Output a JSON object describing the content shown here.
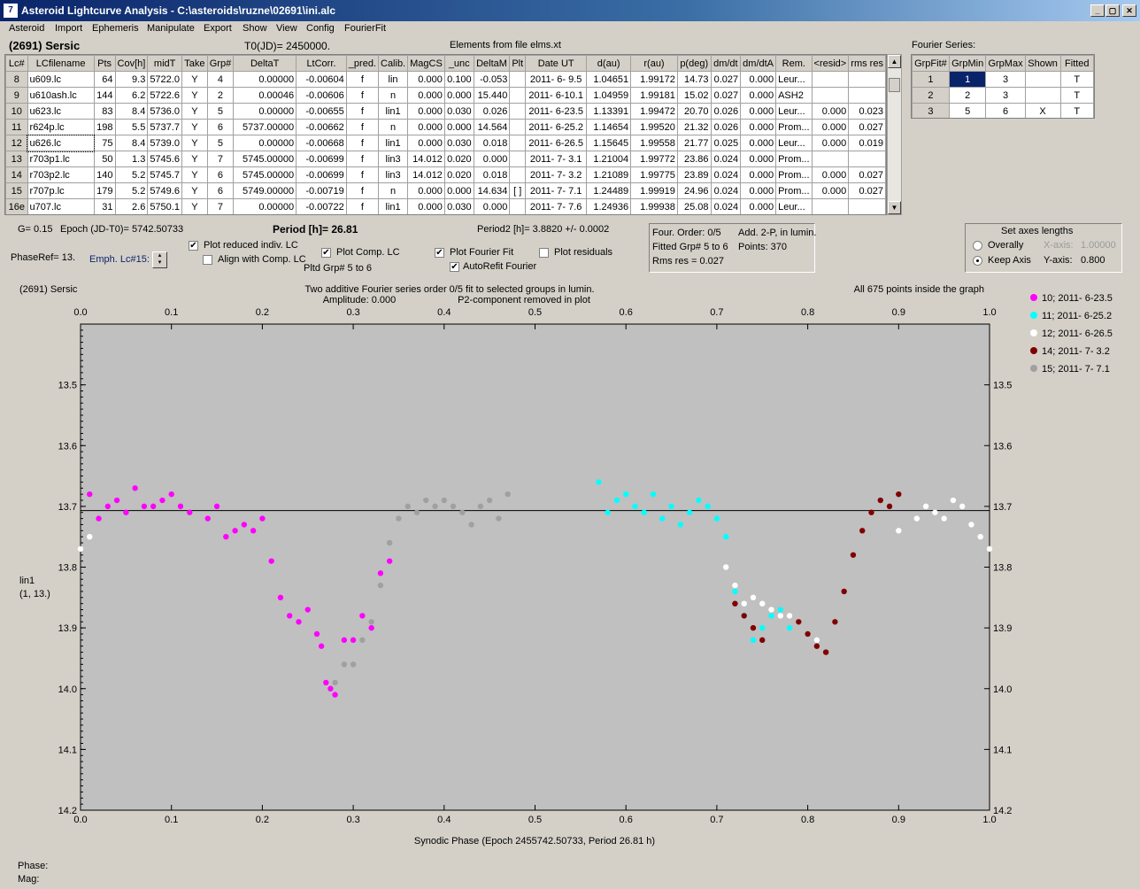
{
  "window": {
    "title": "Asteroid Lightcurve Analysis - C:\\asteroids\\ruzne\\02691\\ini.alc",
    "min": "_",
    "max": "▢",
    "close": "✕"
  },
  "menu": [
    "Asteroid",
    "Import",
    "Ephemeris",
    "Manipulate",
    "Export",
    "Show",
    "View",
    "Config",
    "FourierFit"
  ],
  "header": {
    "asteroid": "(2691) Sersic",
    "t0": "T0(JD)= 2450000.",
    "elements": "Elements from file elms.xt"
  },
  "lc_table": {
    "columns": [
      "Lc#",
      "LCfilename",
      "Pts",
      "Cov[h]",
      "midT",
      "Take",
      "Grp#",
      "DeltaT",
      "LtCorr.",
      "_pred.",
      "Calib.",
      "MagCS",
      "_unc",
      "DeltaM",
      "Plt",
      "Date UT",
      "d(au)",
      "r(au)",
      "p(deg)",
      "dm/dt",
      "dm/dtA",
      "Rem.",
      "<resid>",
      "rms res"
    ],
    "rows": [
      [
        "8",
        "u609.lc",
        "64",
        "9.3",
        "5722.0",
        "Y",
        "4",
        "0.00000",
        "-0.00604",
        "f",
        "lin",
        "0.000",
        "0.100",
        "-0.053",
        "",
        "2011- 6- 9.5",
        "1.04651",
        "1.99172",
        "14.73",
        "0.027",
        "0.000",
        "Leur...",
        "",
        ""
      ],
      [
        "9",
        "u610ash.lc",
        "144",
        "6.2",
        "5722.6",
        "Y",
        "2",
        "0.00046",
        "-0.00606",
        "f",
        "n",
        "0.000",
        "0.000",
        "15.440",
        "",
        "2011- 6-10.1",
        "1.04959",
        "1.99181",
        "15.02",
        "0.027",
        "0.000",
        "ASH2",
        "",
        ""
      ],
      [
        "10",
        "u623.lc",
        "83",
        "8.4",
        "5736.0",
        "Y",
        "5",
        "0.00000",
        "-0.00655",
        "f",
        "lin1",
        "0.000",
        "0.030",
        "0.026",
        "",
        "2011- 6-23.5",
        "1.13391",
        "1.99472",
        "20.70",
        "0.026",
        "0.000",
        "Leur...",
        "0.000",
        "0.023"
      ],
      [
        "11",
        "r624p.lc",
        "198",
        "5.5",
        "5737.7",
        "Y",
        "6",
        "5737.00000",
        "-0.00662",
        "f",
        "n",
        "0.000",
        "0.000",
        "14.564",
        "",
        "2011- 6-25.2",
        "1.14654",
        "1.99520",
        "21.32",
        "0.026",
        "0.000",
        "Prom...",
        "0.000",
        "0.027"
      ],
      [
        "12",
        "u626.lc",
        "75",
        "8.4",
        "5739.0",
        "Y",
        "5",
        "0.00000",
        "-0.00668",
        "f",
        "lin1",
        "0.000",
        "0.030",
        "0.018",
        "",
        "2011- 6-26.5",
        "1.15645",
        "1.99558",
        "21.77",
        "0.025",
        "0.000",
        "Leur...",
        "0.000",
        "0.019"
      ],
      [
        "13",
        "r703p1.lc",
        "50",
        "1.3",
        "5745.6",
        "Y",
        "7",
        "5745.00000",
        "-0.00699",
        "f",
        "lin3",
        "14.012",
        "0.020",
        "0.000",
        "",
        "2011- 7- 3.1",
        "1.21004",
        "1.99772",
        "23.86",
        "0.024",
        "0.000",
        "Prom...",
        "",
        ""
      ],
      [
        "14",
        "r703p2.lc",
        "140",
        "5.2",
        "5745.7",
        "Y",
        "6",
        "5745.00000",
        "-0.00699",
        "f",
        "lin3",
        "14.012",
        "0.020",
        "0.018",
        "",
        "2011- 7- 3.2",
        "1.21089",
        "1.99775",
        "23.89",
        "0.024",
        "0.000",
        "Prom...",
        "0.000",
        "0.027"
      ],
      [
        "15",
        "r707p.lc",
        "179",
        "5.2",
        "5749.6",
        "Y",
        "6",
        "5749.00000",
        "-0.00719",
        "f",
        "n",
        "0.000",
        "0.000",
        "14.634",
        "[ ]",
        "2011- 7- 7.1",
        "1.24489",
        "1.99919",
        "24.96",
        "0.024",
        "0.000",
        "Prom...",
        "0.000",
        "0.027"
      ],
      [
        "16e",
        "u707.lc",
        "31",
        "2.6",
        "5750.1",
        "Y",
        "7",
        "0.00000",
        "-0.00722",
        "f",
        "lin1",
        "0.000",
        "0.030",
        "0.000",
        "",
        "2011- 7- 7.6",
        "1.24936",
        "1.99938",
        "25.08",
        "0.024",
        "0.000",
        "Leur...",
        "",
        ""
      ]
    ]
  },
  "fourier_table": {
    "label": "Fourier Series:",
    "columns": [
      "GrpFit#",
      "GrpMin",
      "GrpMax",
      "Shown",
      "Fitted"
    ],
    "rows": [
      [
        "1",
        "1",
        "3",
        "",
        "T"
      ],
      [
        "2",
        "2",
        "3",
        "",
        "T"
      ],
      [
        "3",
        "5",
        "6",
        "X",
        "T"
      ]
    ]
  },
  "controls": {
    "g": "G= 0.15",
    "epoch": "Epoch (JD-T0)= 5742.50733",
    "period": "Period [h]= 26.81",
    "period2": "Period2 [h]= 3.8820 +/- 0.0002",
    "phaseref": "PhaseRef= 13.",
    "emph": "Emph. Lc#15:",
    "plot_reduced": "Plot reduced indiv. LC",
    "align": "Align with Comp. LC",
    "plot_comp": "Plot Comp. LC",
    "pltd_grp": "Pltd Grp#  5  to   6",
    "plot_fourier": "Plot Fourier Fit",
    "autorefit": "AutoRefit Fourier",
    "plot_resid": "Plot residuals",
    "info1": "Four. Order:  0/5",
    "info2": "Add. 2-P, in lumin.",
    "info3": "Fitted Grp# 5 to 6",
    "info4": "Points: 370",
    "info5": "Rms res    = 0.027",
    "axes_title": "Set axes lengths",
    "overally": "Overally",
    "keep_axis": "Keep Axis",
    "xaxis_lbl": "X-axis:",
    "xaxis_val": "1.00000",
    "yaxis_lbl": "Y-axis:",
    "yaxis_val": "0.800"
  },
  "graph": {
    "name": "(2691) Sersic",
    "line1": "Two additive Fourier series order 0/5 fit to selected groups in lumin.",
    "line2a": "Amplitude: 0.000",
    "line2b": "P2-component removed in plot",
    "points_note": "All 675 points inside the graph",
    "ylab1": "lin1",
    "ylab2": "(1, 13.)",
    "xtitle": "Synodic Phase (Epoch 2455742.50733, Period 26.81 h)"
  },
  "status": {
    "phase": "Phase:",
    "mag": "Mag:"
  },
  "chart_data": {
    "type": "scatter",
    "xlim": [
      0,
      1
    ],
    "ylim": [
      14.2,
      13.4
    ],
    "y_inverted": true,
    "xticks": [
      "0.0",
      "0.1",
      "0.2",
      "0.3",
      "0.4",
      "0.5",
      "0.6",
      "0.7",
      "0.8",
      "0.9",
      "1.0"
    ],
    "yticks": [
      "13.5",
      "13.6",
      "13.7",
      "13.8",
      "13.9",
      "14.0",
      "14.1",
      "14.2"
    ],
    "hline": 13.707,
    "legend_position": "right",
    "series": [
      {
        "name": "10; 2011- 6-23.5",
        "color": "#ff00ff",
        "points": [
          [
            0.01,
            13.68
          ],
          [
            0.02,
            13.72
          ],
          [
            0.03,
            13.7
          ],
          [
            0.04,
            13.69
          ],
          [
            0.05,
            13.71
          ],
          [
            0.06,
            13.67
          ],
          [
            0.07,
            13.7
          ],
          [
            0.08,
            13.7
          ],
          [
            0.09,
            13.69
          ],
          [
            0.1,
            13.68
          ],
          [
            0.11,
            13.7
          ],
          [
            0.12,
            13.71
          ],
          [
            0.14,
            13.72
          ],
          [
            0.15,
            13.7
          ],
          [
            0.16,
            13.75
          ],
          [
            0.17,
            13.74
          ],
          [
            0.18,
            13.73
          ],
          [
            0.19,
            13.74
          ],
          [
            0.2,
            13.72
          ],
          [
            0.21,
            13.79
          ],
          [
            0.22,
            13.85
          ],
          [
            0.23,
            13.88
          ],
          [
            0.24,
            13.89
          ],
          [
            0.25,
            13.87
          ],
          [
            0.26,
            13.91
          ],
          [
            0.265,
            13.93
          ],
          [
            0.27,
            13.99
          ],
          [
            0.275,
            14.0
          ],
          [
            0.28,
            14.01
          ],
          [
            0.29,
            13.92
          ],
          [
            0.3,
            13.92
          ],
          [
            0.31,
            13.88
          ],
          [
            0.32,
            13.9
          ],
          [
            0.33,
            13.81
          ],
          [
            0.34,
            13.79
          ]
        ]
      },
      {
        "name": "11; 2011- 6-25.2",
        "color": "#00ffff",
        "points": [
          [
            0.57,
            13.66
          ],
          [
            0.58,
            13.71
          ],
          [
            0.59,
            13.69
          ],
          [
            0.6,
            13.68
          ],
          [
            0.61,
            13.7
          ],
          [
            0.62,
            13.71
          ],
          [
            0.63,
            13.68
          ],
          [
            0.64,
            13.72
          ],
          [
            0.65,
            13.7
          ],
          [
            0.66,
            13.73
          ],
          [
            0.67,
            13.71
          ],
          [
            0.68,
            13.69
          ],
          [
            0.69,
            13.7
          ],
          [
            0.7,
            13.72
          ],
          [
            0.71,
            13.75
          ],
          [
            0.72,
            13.84
          ],
          [
            0.73,
            13.88
          ],
          [
            0.74,
            13.92
          ],
          [
            0.75,
            13.9
          ],
          [
            0.76,
            13.88
          ],
          [
            0.77,
            13.87
          ],
          [
            0.78,
            13.9
          ]
        ]
      },
      {
        "name": "12; 2011- 6-26.5",
        "color": "#ffffff",
        "points": [
          [
            0.0,
            13.77
          ],
          [
            0.01,
            13.75
          ],
          [
            0.71,
            13.8
          ],
          [
            0.72,
            13.83
          ],
          [
            0.73,
            13.86
          ],
          [
            0.74,
            13.85
          ],
          [
            0.75,
            13.86
          ],
          [
            0.76,
            13.87
          ],
          [
            0.77,
            13.88
          ],
          [
            0.78,
            13.88
          ],
          [
            0.79,
            13.89
          ],
          [
            0.8,
            13.91
          ],
          [
            0.81,
            13.92
          ],
          [
            0.9,
            13.74
          ],
          [
            0.92,
            13.72
          ],
          [
            0.93,
            13.7
          ],
          [
            0.94,
            13.71
          ],
          [
            0.95,
            13.72
          ],
          [
            0.96,
            13.69
          ],
          [
            0.97,
            13.7
          ],
          [
            0.98,
            13.73
          ],
          [
            0.99,
            13.75
          ],
          [
            1.0,
            13.77
          ]
        ]
      },
      {
        "name": "14; 2011- 7- 3.2",
        "color": "#800000",
        "points": [
          [
            0.72,
            13.86
          ],
          [
            0.73,
            13.88
          ],
          [
            0.74,
            13.9
          ],
          [
            0.75,
            13.92
          ],
          [
            0.79,
            13.89
          ],
          [
            0.8,
            13.91
          ],
          [
            0.81,
            13.93
          ],
          [
            0.82,
            13.94
          ],
          [
            0.83,
            13.89
          ],
          [
            0.84,
            13.84
          ],
          [
            0.85,
            13.78
          ],
          [
            0.86,
            13.74
          ],
          [
            0.87,
            13.71
          ],
          [
            0.88,
            13.69
          ],
          [
            0.89,
            13.7
          ],
          [
            0.9,
            13.68
          ]
        ]
      },
      {
        "name": "15; 2011- 7- 7.1",
        "color": "#a0a0a0",
        "points": [
          [
            0.28,
            13.99
          ],
          [
            0.29,
            13.96
          ],
          [
            0.3,
            13.96
          ],
          [
            0.31,
            13.92
          ],
          [
            0.32,
            13.89
          ],
          [
            0.33,
            13.83
          ],
          [
            0.34,
            13.76
          ],
          [
            0.35,
            13.72
          ],
          [
            0.36,
            13.7
          ],
          [
            0.37,
            13.71
          ],
          [
            0.38,
            13.69
          ],
          [
            0.39,
            13.7
          ],
          [
            0.4,
            13.69
          ],
          [
            0.41,
            13.7
          ],
          [
            0.42,
            13.71
          ],
          [
            0.43,
            13.73
          ],
          [
            0.44,
            13.7
          ],
          [
            0.45,
            13.69
          ],
          [
            0.46,
            13.72
          ],
          [
            0.47,
            13.68
          ]
        ]
      }
    ]
  }
}
